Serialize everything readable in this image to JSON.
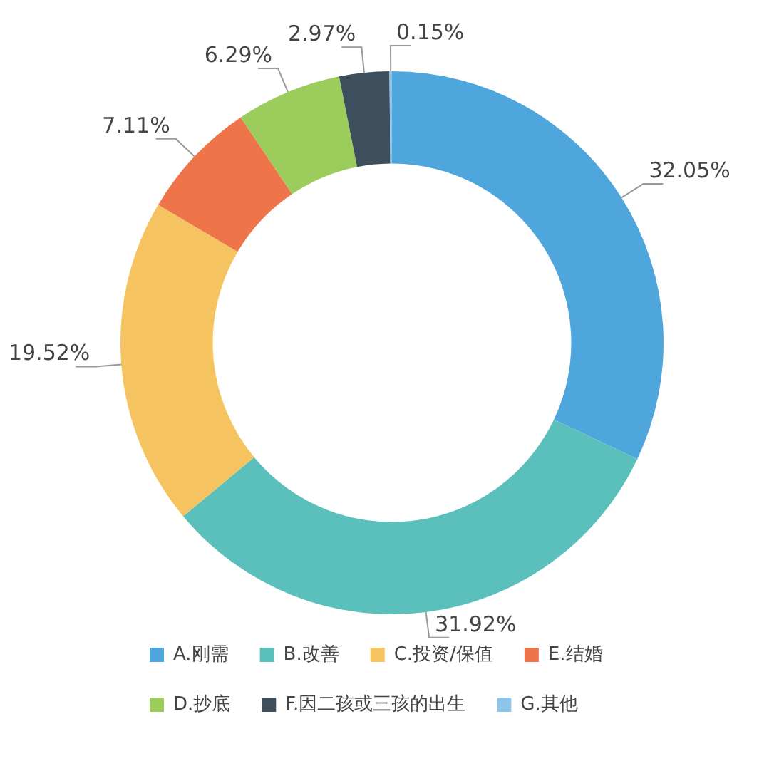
{
  "chart_data": {
    "type": "donut",
    "categories": [
      "A.刚需",
      "B.改善",
      "C.投资/保值",
      "E.结婚",
      "D.抄底",
      "F.因二孩或三孩的出生",
      "G.其他"
    ],
    "values": [
      32.05,
      31.92,
      19.52,
      7.11,
      6.29,
      2.97,
      0.15
    ],
    "value_labels": [
      "32.05%",
      "31.92%",
      "19.52%",
      "7.11%",
      "6.29%",
      "2.97%",
      "0.15%"
    ],
    "colors": [
      "#4fa6dc",
      "#5bc0bc",
      "#f5c461",
      "#ee7549",
      "#9ccc5c",
      "#3d4f5c",
      "#8fc4ea"
    ],
    "legend": "bottom"
  }
}
